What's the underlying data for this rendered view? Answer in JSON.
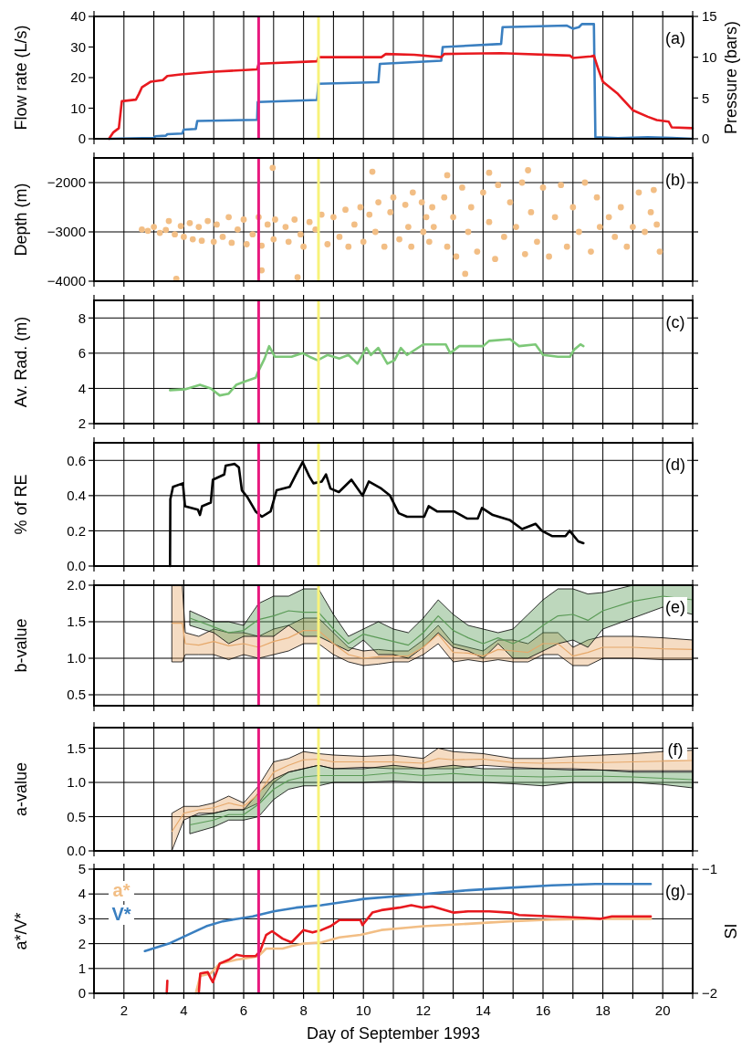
{
  "chart_data": [
    {
      "type": "line",
      "ylabel": "Flow rate (L/s)",
      "y2label": "Pressure (bars)",
      "annotations": [
        "(a)"
      ],
      "xlim": [
        1,
        21
      ],
      "xticks": [
        {
          "value": 1,
          "label": null
        },
        2,
        {
          "value": 3,
          "label": null
        },
        4,
        {
          "value": 5,
          "label": null
        },
        6,
        {
          "value": 7,
          "label": null
        },
        8,
        {
          "value": 9,
          "label": null
        },
        10,
        {
          "value": 11,
          "label": null
        },
        12,
        {
          "value": 13,
          "label": null
        },
        14,
        {
          "value": 15,
          "label": null
        },
        16,
        {
          "value": 17,
          "label": null
        },
        18,
        {
          "value": 19,
          "label": null
        },
        20,
        {
          "value": 21,
          "label": null
        }
      ],
      "ylim": [
        0,
        40
      ],
      "yticks": [
        0,
        10,
        20,
        30,
        40
      ],
      "y2lim": [
        0,
        15
      ],
      "y2ticks": [
        0,
        5,
        10,
        15
      ],
      "grid": "x",
      "tick_labels": "y",
      "ref_lines": [
        {
          "axis": "x",
          "value": 6.5,
          "color": "#e8197f"
        },
        {
          "axis": "x",
          "value": 8.5,
          "color": "#f8f27a"
        }
      ],
      "series": [
        {
          "color": "#3a7fc0",
          "x": [
            1.5,
            3.0,
            3.05,
            3.4,
            3.45,
            3.95,
            4.0,
            4.4,
            4.45,
            6.45,
            6.47,
            8.45,
            8.5,
            10.5,
            10.55,
            12.6,
            12.65,
            14.6,
            14.65,
            16.8,
            17.0,
            17.2,
            17.3,
            17.7,
            17.75,
            18.5,
            19.5,
            20.3,
            21
          ],
          "values": [
            0,
            0.3,
            0.8,
            1,
            1.5,
            1.7,
            3,
            3.2,
            5.8,
            6.2,
            12,
            12.7,
            18,
            18.5,
            24.5,
            25.5,
            30,
            31,
            36.5,
            37,
            36,
            36.5,
            37.5,
            37.5,
            0.5,
            0.2,
            0.5,
            0.3,
            0
          ]
        },
        {
          "color": "#e8191f",
          "axis": "y2",
          "x": [
            1.5,
            1.65,
            1.83,
            1.93,
            2.4,
            2.5,
            2.6,
            2.9,
            3.3,
            3.45,
            3.9,
            4.9,
            6.45,
            6.5,
            8.45,
            8.5,
            10.6,
            10.75,
            11.7,
            12.6,
            12.7,
            14.6,
            16.9,
            17.0,
            17.6,
            17.7,
            17.85,
            18.0,
            18.5,
            19.0,
            19.5,
            19.8,
            20.2,
            20.3,
            21
          ],
          "values": [
            0,
            0.8,
            1.3,
            4.6,
            4.8,
            5.5,
            6.3,
            7.0,
            7.2,
            7.7,
            7.9,
            8.2,
            8.5,
            9.2,
            9.5,
            10,
            10,
            10.4,
            10.3,
            10,
            10.4,
            10.5,
            10.2,
            9.9,
            10.1,
            10.2,
            8.5,
            7.0,
            5.5,
            3.5,
            2.7,
            2.3,
            2.1,
            1.4,
            1.3
          ]
        }
      ]
    },
    {
      "type": "scatter",
      "ylabel": "Depth (m)",
      "annotations": [
        "(b)"
      ],
      "xlim": [
        1,
        21
      ],
      "xticks": [
        {
          "value": 1,
          "label": null
        },
        2,
        {
          "value": 3,
          "label": null
        },
        4,
        {
          "value": 5,
          "label": null
        },
        6,
        {
          "value": 7,
          "label": null
        },
        8,
        {
          "value": 9,
          "label": null
        },
        10,
        {
          "value": 11,
          "label": null
        },
        12,
        {
          "value": 13,
          "label": null
        },
        14,
        {
          "value": 15,
          "label": null
        },
        16,
        {
          "value": 17,
          "label": null
        },
        18,
        {
          "value": 19,
          "label": null
        },
        20,
        {
          "value": 21,
          "label": null
        }
      ],
      "ylim": [
        -4000,
        -1500
      ],
      "yticks": [
        -4000,
        -3000,
        -2000
      ],
      "grid": true,
      "tick_labels": "y",
      "marker": "circle",
      "ref_lines": [
        {
          "axis": "x",
          "value": 6.5,
          "color": "#e8197f"
        },
        {
          "axis": "x",
          "value": 8.5,
          "color": "#f8f27a"
        }
      ],
      "series": [
        {
          "color": "#f2be85",
          "x": [
            2.6,
            2.8,
            3.0,
            3.2,
            3.4,
            3.5,
            3.7,
            3.9,
            4.0,
            4.2,
            4.3,
            4.5,
            4.6,
            4.8,
            5.0,
            5.1,
            5.3,
            5.5,
            5.6,
            5.8,
            6.0,
            6.1,
            6.3,
            6.5,
            6.6,
            6.8,
            7.0,
            7.05,
            6.97,
            6.6,
            3.75,
            7.8,
            7.4,
            7.5,
            7.7,
            7.9,
            8.0,
            8.2,
            8.4,
            8.6,
            8.8,
            9.0,
            9.2,
            9.4,
            9.5,
            9.7,
            9.9,
            10.0,
            10.2,
            10.4,
            10.5,
            10.7,
            10.9,
            11.0,
            11.2,
            11.4,
            11.5,
            11.65,
            11.6,
            10.3,
            11.95,
            12.0,
            12.1,
            12.2,
            12.3,
            12.35,
            12.7,
            12.8,
            13.0,
            13.1,
            13.3,
            13.5,
            13.6,
            13.8,
            14.0,
            14.2,
            14.4,
            14.5,
            14.7,
            14.9,
            15.1,
            15.3,
            15.4,
            15.6,
            15.8,
            16.0,
            16.2,
            16.4,
            16.6,
            16.8,
            17.0,
            17.2,
            17.4,
            17.6,
            17.8,
            17.9,
            12.8,
            14.2,
            15.5,
            13.4,
            18.2,
            18.4,
            18.6,
            18.8,
            19.0,
            19.2,
            19.4,
            19.6,
            19.8,
            19.9,
            19.7
          ],
          "values": [
            -2950,
            -2980,
            -2900,
            -3020,
            -2960,
            -2780,
            -3050,
            -2880,
            -3100,
            -2820,
            -3150,
            -2900,
            -3180,
            -2780,
            -3200,
            -2850,
            -3100,
            -2700,
            -3220,
            -2950,
            -2750,
            -3250,
            -3050,
            -2700,
            -3280,
            -2850,
            -3150,
            -2750,
            -1700,
            -3780,
            -3950,
            -3920,
            -2900,
            -3200,
            -2750,
            -3050,
            -3300,
            -2800,
            -2950,
            -2650,
            -3250,
            -2700,
            -3100,
            -2550,
            -3300,
            -2850,
            -2500,
            -3200,
            -2650,
            -3000,
            -2400,
            -3300,
            -2600,
            -2300,
            -3150,
            -2450,
            -2900,
            -2200,
            -3300,
            -1780,
            -2400,
            -3000,
            -2700,
            -3200,
            -2500,
            -2900,
            -2300,
            -3300,
            -2700,
            -3500,
            -2100,
            -3000,
            -2500,
            -3400,
            -2200,
            -2800,
            -3550,
            -2050,
            -3100,
            -2400,
            -2900,
            -2000,
            -3450,
            -2600,
            -3200,
            -2100,
            -3500,
            -2700,
            -2050,
            -3300,
            -2500,
            -3000,
            -2000,
            -3400,
            -2300,
            -2900,
            -1850,
            -1800,
            -1750,
            -3850,
            -2700,
            -3100,
            -2500,
            -3300,
            -2900,
            -2200,
            -3000,
            -2600,
            -2850,
            -3400,
            -2150
          ]
        }
      ]
    },
    {
      "type": "line",
      "ylabel": "Av. Rad. (m)",
      "annotations": [
        "(c)"
      ],
      "xlim": [
        1,
        21
      ],
      "xticks": [
        {
          "value": 1,
          "label": null
        },
        2,
        {
          "value": 3,
          "label": null
        },
        4,
        {
          "value": 5,
          "label": null
        },
        6,
        {
          "value": 7,
          "label": null
        },
        8,
        {
          "value": 9,
          "label": null
        },
        10,
        {
          "value": 11,
          "label": null
        },
        12,
        {
          "value": 13,
          "label": null
        },
        14,
        {
          "value": 15,
          "label": null
        },
        16,
        {
          "value": 17,
          "label": null
        },
        18,
        {
          "value": 19,
          "label": null
        },
        20,
        {
          "value": 21,
          "label": null
        }
      ],
      "ylim": [
        2,
        9
      ],
      "yticks": [
        2,
        4,
        6,
        8
      ],
      "grid": true,
      "tick_labels": "y",
      "ref_lines": [
        {
          "axis": "x",
          "value": 6.5,
          "color": "#e8197f"
        },
        {
          "axis": "x",
          "value": 8.5,
          "color": "#f8f27a"
        }
      ],
      "series": [
        {
          "color": "#7dc878",
          "x": [
            3.54,
            4.04,
            4.54,
            4.9,
            5.2,
            5.5,
            5.75,
            6.05,
            6.4,
            6.47,
            6.7,
            6.85,
            7.04,
            7.6,
            7.97,
            8.2,
            8.47,
            8.8,
            9.2,
            9.5,
            9.8,
            10.1,
            10.25,
            10.5,
            10.8,
            11.04,
            11.25,
            11.46,
            12.0,
            12.75,
            12.9,
            13.2,
            14.0,
            14.2,
            14.9,
            15.2,
            15.75,
            16.0,
            16.5,
            16.9,
            17.04,
            17.25,
            17.35
          ],
          "values": [
            3.9,
            3.95,
            4.2,
            4.0,
            3.6,
            3.7,
            4.2,
            4.4,
            4.6,
            4.9,
            5.7,
            6.4,
            5.8,
            5.8,
            6.0,
            5.8,
            5.6,
            5.9,
            5.7,
            5.9,
            5.4,
            6.3,
            5.9,
            6.3,
            5.4,
            5.6,
            6.3,
            5.9,
            6.5,
            6.5,
            6.0,
            6.4,
            6.4,
            6.7,
            6.8,
            6.4,
            6.5,
            5.9,
            5.8,
            5.8,
            6.2,
            6.5,
            6.4
          ]
        }
      ]
    },
    {
      "type": "line",
      "ylabel": "% of RE",
      "annotations": [
        "(d)"
      ],
      "xlim": [
        1,
        21
      ],
      "xticks": [
        {
          "value": 1,
          "label": null
        },
        2,
        {
          "value": 3,
          "label": null
        },
        4,
        {
          "value": 5,
          "label": null
        },
        6,
        {
          "value": 7,
          "label": null
        },
        8,
        {
          "value": 9,
          "label": null
        },
        10,
        {
          "value": 11,
          "label": null
        },
        12,
        {
          "value": 13,
          "label": null
        },
        14,
        {
          "value": 15,
          "label": null
        },
        16,
        {
          "value": 17,
          "label": null
        },
        18,
        {
          "value": 19,
          "label": null
        },
        20,
        {
          "value": 21,
          "label": null
        }
      ],
      "ylim": [
        0,
        0.7
      ],
      "yticks": [
        {
          "value": 0,
          "label": "0.0"
        },
        0.2,
        0.4,
        0.6
      ],
      "grid": true,
      "tick_labels": "y",
      "ref_lines": [
        {
          "axis": "x",
          "value": 6.5,
          "color": "#e8197f"
        },
        {
          "axis": "x",
          "value": 8.5,
          "color": "#f8f27a"
        }
      ],
      "series": [
        {
          "color": "#000000",
          "x": [
            3.54,
            3.55,
            3.64,
            3.97,
            4.04,
            4.47,
            4.54,
            4.61,
            4.9,
            4.97,
            5.35,
            5.4,
            5.7,
            5.84,
            5.94,
            6.13,
            6.4,
            6.61,
            6.9,
            7.1,
            7.54,
            7.75,
            7.97,
            8.19,
            8.33,
            8.61,
            8.75,
            8.9,
            9.18,
            9.6,
            9.97,
            10.18,
            10.6,
            10.89,
            11.18,
            11.46,
            12.03,
            12.18,
            12.46,
            13.03,
            13.46,
            13.82,
            13.96,
            14.32,
            14.9,
            15.3,
            15.75,
            15.96,
            16.3,
            16.75,
            16.89,
            17.18,
            17.35
          ],
          "values": [
            0,
            0.38,
            0.45,
            0.47,
            0.34,
            0.32,
            0.29,
            0.34,
            0.36,
            0.49,
            0.52,
            0.57,
            0.58,
            0.56,
            0.43,
            0.39,
            0.31,
            0.28,
            0.31,
            0.43,
            0.45,
            0.52,
            0.59,
            0.51,
            0.47,
            0.48,
            0.52,
            0.44,
            0.42,
            0.49,
            0.4,
            0.48,
            0.44,
            0.4,
            0.3,
            0.28,
            0.28,
            0.34,
            0.31,
            0.31,
            0.27,
            0.27,
            0.33,
            0.29,
            0.26,
            0.21,
            0.24,
            0.2,
            0.17,
            0.17,
            0.2,
            0.14,
            0.13
          ]
        }
      ]
    },
    {
      "type": "line",
      "ylabel": "b-value",
      "annotations": [
        "(e)"
      ],
      "xlim": [
        1,
        21
      ],
      "xticks": [
        {
          "value": 1,
          "label": null
        },
        2,
        {
          "value": 3,
          "label": null
        },
        4,
        {
          "value": 5,
          "label": null
        },
        6,
        {
          "value": 7,
          "label": null
        },
        8,
        {
          "value": 9,
          "label": null
        },
        10,
        {
          "value": 11,
          "label": null
        },
        12,
        {
          "value": 13,
          "label": null
        },
        14,
        {
          "value": 15,
          "label": null
        },
        16,
        {
          "value": 17,
          "label": null
        },
        18,
        {
          "value": 19,
          "label": null
        },
        20,
        {
          "value": 21,
          "label": null
        }
      ],
      "ylim": [
        0.35,
        2
      ],
      "yticks": [
        0.5,
        {
          "value": 1,
          "label": "1.0"
        },
        1.5,
        {
          "value": 2,
          "label": "2.0"
        }
      ],
      "grid": true,
      "tick_labels": "y",
      "ref_lines": [
        {
          "axis": "x",
          "value": 6.5,
          "color": "#e8197f"
        },
        {
          "axis": "x",
          "value": 8.5,
          "color": "#f8f27a"
        }
      ],
      "series": [
        {
          "color": "#e6a86a",
          "x": [
            3.6,
            3.95,
            4.05,
            4.5,
            5.0,
            5.5,
            6.0,
            6.5,
            7.0,
            7.5,
            8.0,
            8.5,
            9.0,
            9.5,
            10.0,
            10.5,
            11.0,
            11.5,
            12.0,
            12.5,
            13.0,
            13.5,
            14.0,
            14.5,
            15.0,
            15.5,
            16.0,
            16.5,
            17.0,
            17.5,
            18.0,
            19.0,
            20.0,
            21.0
          ],
          "values": [
            1.48,
            1.48,
            1.2,
            1.18,
            1.23,
            1.17,
            1.2,
            1.15,
            1.23,
            1.28,
            1.38,
            1.38,
            1.2,
            1.05,
            1.0,
            1.02,
            1.03,
            1.03,
            1.15,
            1.33,
            1.08,
            1.07,
            1.03,
            1.12,
            1.1,
            1.08,
            1.2,
            1.2,
            1.03,
            1.08,
            1.15,
            1.15,
            1.13,
            1.12
          ],
          "lower": [
            0.95,
            0.95,
            1.05,
            1.05,
            1.05,
            0.98,
            1.05,
            1.0,
            1.05,
            1.1,
            1.2,
            1.2,
            1.05,
            0.95,
            0.9,
            0.92,
            0.95,
            0.95,
            1.05,
            1.2,
            0.95,
            0.98,
            0.95,
            0.98,
            0.95,
            0.95,
            1.05,
            1.05,
            0.9,
            0.9,
            1.0,
            1.0,
            0.98,
            0.98
          ],
          "upper": [
            2.0,
            2.0,
            1.35,
            1.3,
            1.4,
            1.35,
            1.35,
            1.3,
            1.4,
            1.45,
            1.55,
            1.55,
            1.35,
            1.15,
            1.1,
            1.12,
            1.1,
            1.1,
            1.25,
            1.45,
            1.2,
            1.15,
            1.1,
            1.25,
            1.25,
            1.2,
            1.35,
            1.35,
            1.15,
            1.25,
            1.3,
            1.3,
            1.28,
            1.25
          ]
        },
        {
          "color": "#5b9b57",
          "x": [
            4.2,
            5.0,
            5.5,
            6.0,
            6.5,
            7.0,
            7.5,
            8.0,
            8.5,
            9.0,
            9.5,
            10.0,
            10.5,
            11.0,
            11.5,
            12.0,
            12.5,
            13.0,
            13.5,
            14.0,
            14.5,
            15.0,
            15.5,
            16.0,
            16.5,
            17.0,
            17.5,
            18.0,
            19.0,
            20.0,
            21.0
          ],
          "values": [
            1.55,
            1.43,
            1.35,
            1.38,
            1.53,
            1.58,
            1.65,
            1.63,
            1.63,
            1.4,
            1.2,
            1.33,
            1.28,
            1.23,
            1.18,
            1.35,
            1.58,
            1.38,
            1.28,
            1.2,
            1.28,
            1.2,
            1.3,
            1.45,
            1.58,
            1.6,
            1.52,
            1.65,
            1.78,
            1.85,
            1.8
          ],
          "lower": [
            1.45,
            1.35,
            1.2,
            1.3,
            1.3,
            1.3,
            1.45,
            1.3,
            1.3,
            1.2,
            1.1,
            1.25,
            1.05,
            1.05,
            1.0,
            1.15,
            1.35,
            1.15,
            1.1,
            1.0,
            1.2,
            1.0,
            1.0,
            1.1,
            1.2,
            1.25,
            1.15,
            1.4,
            1.55,
            1.7,
            1.6
          ],
          "upper": [
            1.65,
            1.5,
            1.5,
            1.45,
            1.75,
            1.85,
            1.85,
            1.95,
            1.95,
            1.6,
            1.3,
            1.4,
            1.5,
            1.4,
            1.35,
            1.55,
            1.8,
            1.6,
            1.45,
            1.4,
            1.35,
            1.4,
            1.6,
            1.8,
            1.95,
            1.95,
            1.88,
            1.9,
            2.0,
            2.0,
            2.0
          ]
        }
      ]
    },
    {
      "type": "line",
      "ylabel": "a-value",
      "annotations": [
        "(f)"
      ],
      "xlim": [
        1,
        21
      ],
      "xticks": [
        {
          "value": 1,
          "label": null
        },
        2,
        {
          "value": 3,
          "label": null
        },
        4,
        {
          "value": 5,
          "label": null
        },
        6,
        {
          "value": 7,
          "label": null
        },
        8,
        {
          "value": 9,
          "label": null
        },
        10,
        {
          "value": 11,
          "label": null
        },
        12,
        {
          "value": 13,
          "label": null
        },
        14,
        {
          "value": 15,
          "label": null
        },
        16,
        {
          "value": 17,
          "label": null
        },
        18,
        {
          "value": 19,
          "label": null
        },
        20,
        {
          "value": 21,
          "label": null
        }
      ],
      "ylim": [
        0,
        1.8
      ],
      "yticks": [
        {
          "value": 0,
          "label": "0.0"
        },
        0.5,
        {
          "value": 1,
          "label": "1.0"
        },
        1.5
      ],
      "grid": true,
      "tick_labels": "y",
      "ref_lines": [
        {
          "axis": "x",
          "value": 6.5,
          "color": "#e8197f"
        },
        {
          "axis": "x",
          "value": 8.5,
          "color": "#f8f27a"
        }
      ],
      "series": [
        {
          "color": "#e6a86a",
          "x": [
            3.6,
            4.0,
            4.5,
            5.0,
            5.5,
            6.0,
            6.5,
            7.0,
            7.5,
            8.0,
            8.5,
            9.0,
            10.0,
            11.0,
            12.0,
            12.5,
            13.0,
            14.0,
            15.0,
            16.0,
            17.0,
            18.0,
            19.0,
            20.0,
            21.0
          ],
          "values": [
            0.28,
            0.55,
            0.6,
            0.63,
            0.7,
            0.65,
            0.83,
            1.15,
            1.25,
            1.33,
            1.34,
            1.3,
            1.3,
            1.3,
            1.28,
            1.35,
            1.33,
            1.34,
            1.29,
            1.28,
            1.29,
            1.29,
            1.3,
            1.31,
            1.32
          ],
          "lower": [
            0.0,
            0.45,
            0.55,
            0.55,
            0.6,
            0.6,
            0.7,
            1.0,
            1.15,
            1.2,
            1.25,
            1.2,
            1.22,
            1.2,
            1.2,
            1.2,
            1.2,
            1.25,
            1.22,
            1.2,
            1.2,
            1.18,
            1.17,
            1.17,
            1.17
          ],
          "upper": [
            0.55,
            0.65,
            0.65,
            0.7,
            0.8,
            0.7,
            0.95,
            1.3,
            1.35,
            1.45,
            1.42,
            1.4,
            1.38,
            1.4,
            1.35,
            1.5,
            1.45,
            1.42,
            1.35,
            1.35,
            1.38,
            1.4,
            1.42,
            1.45,
            1.47
          ]
        },
        {
          "color": "#5b9b57",
          "x": [
            4.2,
            5.0,
            5.5,
            6.0,
            6.5,
            7.0,
            7.5,
            8.0,
            8.5,
            9.0,
            10.0,
            11.0,
            12.0,
            13.0,
            14.0,
            15.0,
            16.0,
            17.0,
            18.0,
            19.0,
            20.0,
            21.0
          ],
          "values": [
            0.38,
            0.45,
            0.53,
            0.53,
            0.68,
            0.9,
            1.03,
            1.08,
            1.1,
            1.1,
            1.1,
            1.14,
            1.1,
            1.13,
            1.1,
            1.09,
            1.08,
            1.09,
            1.09,
            1.08,
            1.06,
            1.04
          ],
          "lower": [
            0.25,
            0.35,
            0.45,
            0.45,
            0.5,
            0.75,
            0.9,
            0.95,
            0.95,
            1.0,
            1.0,
            1.02,
            1.0,
            1.0,
            1.0,
            0.98,
            0.95,
            1.0,
            1.0,
            1.0,
            0.97,
            0.92
          ],
          "upper": [
            0.5,
            0.55,
            0.6,
            0.6,
            0.85,
            1.05,
            1.15,
            1.2,
            1.25,
            1.2,
            1.2,
            1.25,
            1.2,
            1.25,
            1.2,
            1.2,
            1.2,
            1.18,
            1.18,
            1.15,
            1.15,
            1.15
          ]
        }
      ]
    },
    {
      "type": "line",
      "ylabel": "a*/V*",
      "y2label": "SI",
      "xlabel": "Day of September 1993",
      "annotations": [
        "(g)"
      ],
      "xlim": [
        1,
        21
      ],
      "xticks": [
        {
          "value": 1,
          "label": null
        },
        2,
        {
          "value": 3,
          "label": null
        },
        4,
        {
          "value": 5,
          "label": null
        },
        6,
        {
          "value": 7,
          "label": null
        },
        8,
        {
          "value": 9,
          "label": null
        },
        10,
        {
          "value": 11,
          "label": null
        },
        12,
        {
          "value": 13,
          "label": null
        },
        14,
        {
          "value": 15,
          "label": null
        },
        16,
        {
          "value": 17,
          "label": null
        },
        18,
        {
          "value": 19,
          "label": null
        },
        20,
        {
          "value": 21,
          "label": null
        }
      ],
      "ylim": [
        0,
        5
      ],
      "yticks": [
        0,
        1,
        2,
        3,
        4,
        5
      ],
      "y2lim": [
        -2,
        -1
      ],
      "y2ticks": [
        -2,
        -1
      ],
      "grid": true,
      "legend": "top left",
      "ref_lines": [
        {
          "axis": "x",
          "value": 6.5,
          "color": "#e8197f"
        },
        {
          "axis": "x",
          "value": 8.5,
          "color": "#f8f27a"
        }
      ],
      "series": [
        {
          "name": "a*",
          "color": "#f2be85",
          "x": [
            4.4,
            4.55,
            4.9,
            5.2,
            5.75,
            6.3,
            6.5,
            6.75,
            7.3,
            7.6,
            8.0,
            8.6,
            9.2,
            9.9,
            10.6,
            11.5,
            12.0,
            13.5,
            14.9,
            16.3,
            17.75,
            19.6
          ],
          "values": [
            0,
            0.7,
            0.8,
            1.2,
            1.35,
            1.45,
            1.5,
            1.8,
            1.8,
            1.9,
            2.0,
            2.05,
            2.25,
            2.35,
            2.55,
            2.65,
            2.7,
            2.8,
            2.9,
            2.97,
            3.0,
            3.0
          ]
        },
        {
          "name": "V*",
          "color": "#3a7fc0",
          "x": [
            2.7,
            3.5,
            4.04,
            4.75,
            5.3,
            6.3,
            7.0,
            7.75,
            8.6,
            9.75,
            10.0,
            12.0,
            13.5,
            14.9,
            16.3,
            17.75,
            19.6
          ],
          "values": [
            1.7,
            2.0,
            2.3,
            2.7,
            2.9,
            3.1,
            3.3,
            3.45,
            3.55,
            3.75,
            3.8,
            4.0,
            4.15,
            4.25,
            4.35,
            4.4,
            4.4
          ]
        },
        {
          "color": "#e8191f",
          "axis": "y2",
          "x": [
            3.43,
            3.45,
            3.5,
            4.5,
            4.55,
            4.8,
            4.9,
            4.97,
            5.2,
            5.5,
            5.75,
            6.0,
            6.4,
            6.55,
            6.75,
            6.95,
            7.3,
            7.6,
            8.0,
            8.3,
            8.6,
            8.9,
            9.2,
            9.5,
            9.9,
            9.97,
            10.3,
            10.6,
            11.2,
            11.6,
            12.0,
            12.3,
            13.0,
            13.5,
            14.2,
            14.9,
            15.2,
            16.3,
            17.2,
            17.9,
            18.3,
            19.6
          ],
          "values": [
            -2.0,
            -1.9,
            null,
            -2.0,
            -1.84,
            -1.83,
            -1.88,
            -1.91,
            -1.76,
            -1.73,
            -1.69,
            -1.7,
            -1.7,
            -1.66,
            -1.53,
            -1.5,
            -1.56,
            -1.59,
            -1.49,
            -1.51,
            -1.49,
            -1.46,
            -1.41,
            -1.41,
            -1.41,
            -1.45,
            -1.35,
            -1.33,
            -1.31,
            -1.29,
            -1.31,
            -1.3,
            -1.35,
            -1.34,
            -1.34,
            -1.35,
            -1.37,
            -1.38,
            -1.39,
            -1.4,
            -1.38,
            -1.38
          ]
        }
      ]
    }
  ]
}
